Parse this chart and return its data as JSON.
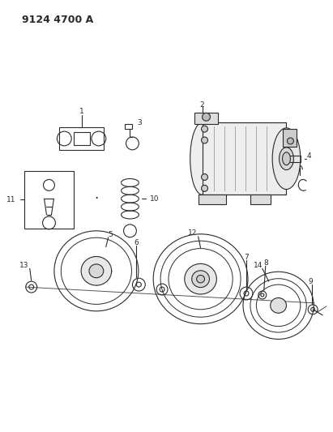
{
  "title": "9124 4700 A",
  "background_color": "#ffffff",
  "line_color": "#2a2a2a",
  "figsize": [
    4.11,
    5.33
  ],
  "dpi": 100
}
